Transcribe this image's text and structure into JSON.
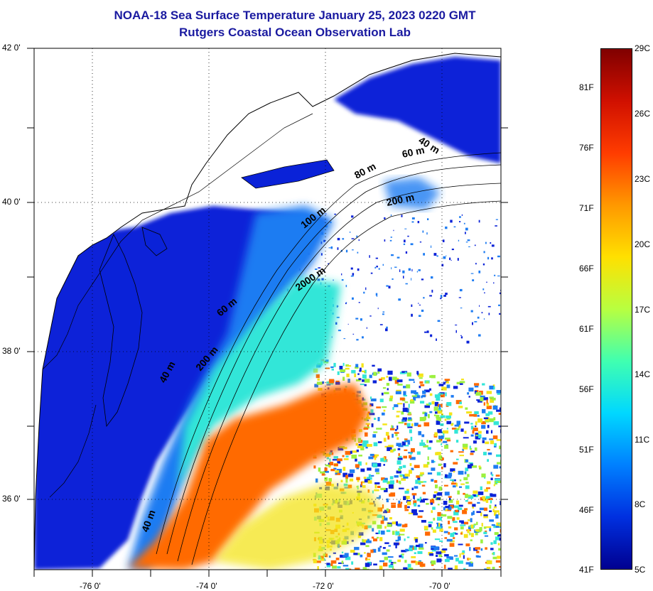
{
  "title": {
    "line1": "NOAA-18 Sea Surface Temperature January 25, 2023 0220 GMT",
    "line2": "Rutgers Coastal Ocean Observation Lab"
  },
  "axes": {
    "lat_labels": [
      "42 0'",
      "40 0'",
      "38 0'",
      "36 0'"
    ],
    "lon_labels": [
      "-76 0'",
      "-74 0'",
      "-72 0'",
      "-70 0'"
    ]
  },
  "isobaths": [
    "40 m",
    "60 m",
    "80 m",
    "200 m",
    "100 m",
    "2000 m",
    "60 m",
    "40 m",
    "200 m",
    "40 m"
  ],
  "colorbar": {
    "fahrenheit": [
      "81F",
      "76F",
      "71F",
      "66F",
      "61F",
      "56F",
      "51F",
      "46F",
      "41F"
    ],
    "celsius": [
      "29C",
      "26C",
      "23C",
      "20C",
      "17C",
      "14C",
      "11C",
      "8C",
      "5C"
    ],
    "colors": [
      "#800000",
      "#d01000",
      "#ff3c00",
      "#ff9800",
      "#ffe000",
      "#b8ff40",
      "#40ffb0",
      "#00d8ff",
      "#0080ff",
      "#0030e0",
      "#000090"
    ]
  },
  "palette": {
    "cold": "#0a22d8",
    "cool": "#1e7cf2",
    "teal": "#33e6d8",
    "warm": "#ff6a00",
    "hot": "#ff4a10",
    "yellow": "#f4e41a",
    "land": "#ffffff",
    "title_color": "#1a1aa0"
  }
}
